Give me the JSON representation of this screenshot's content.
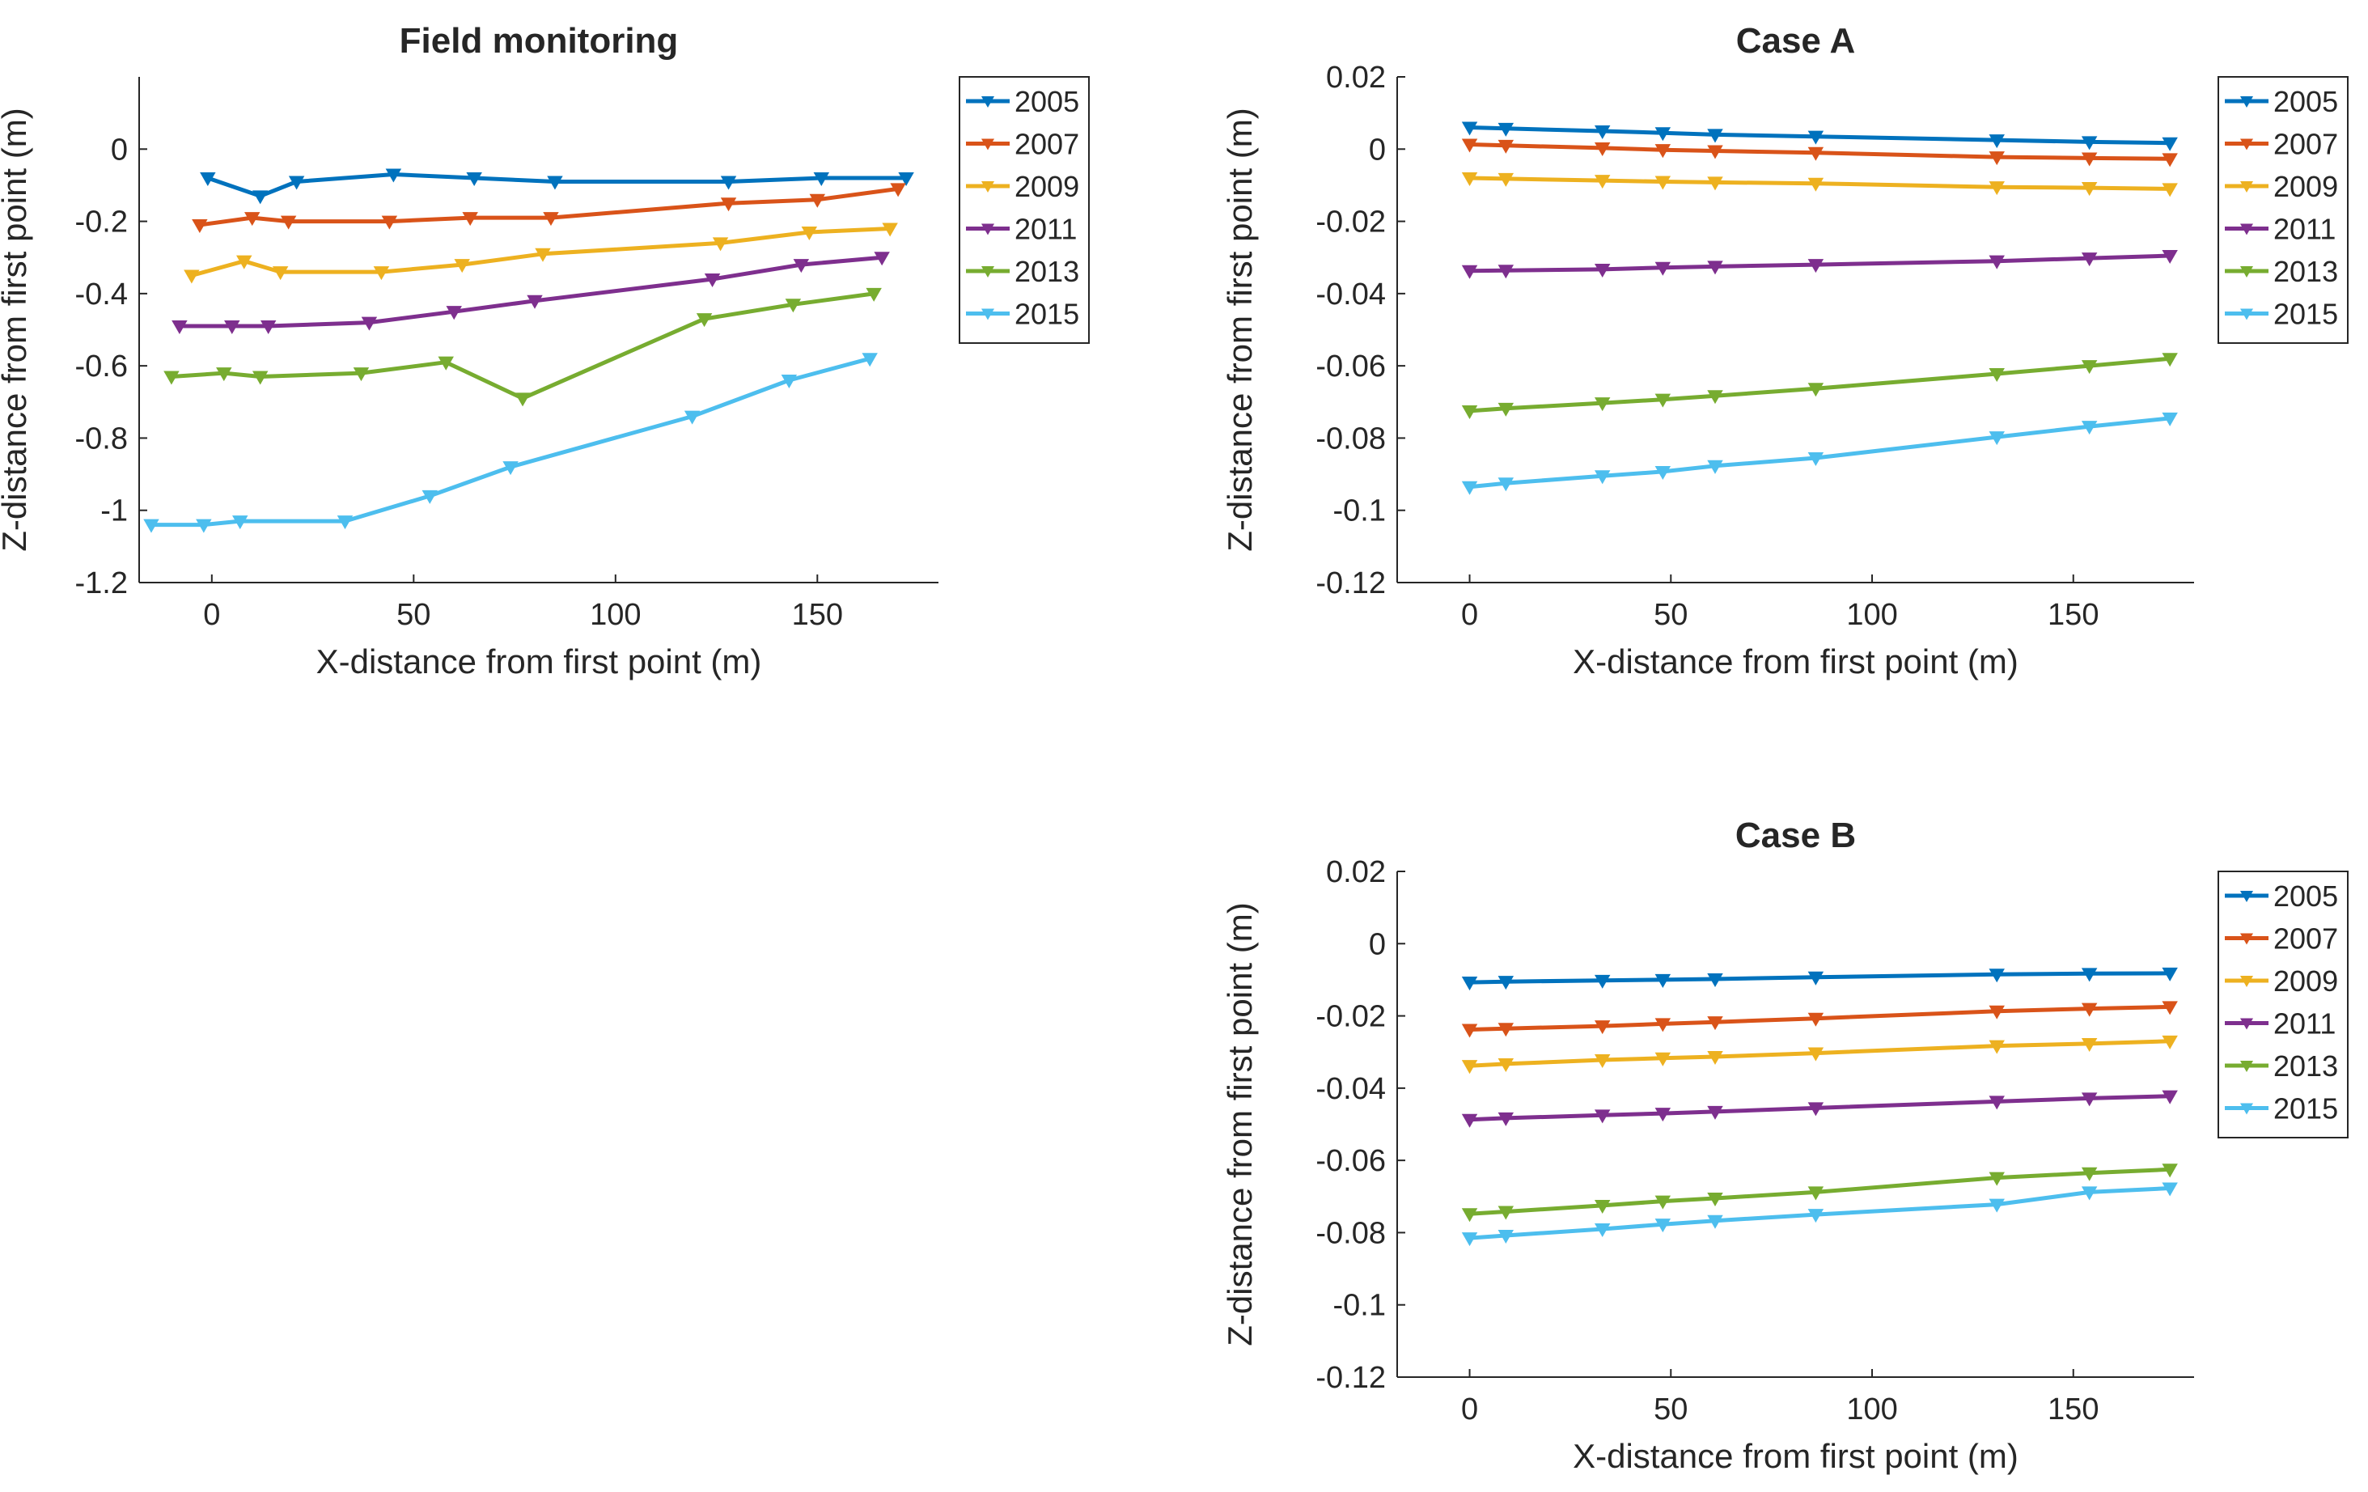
{
  "colors": {
    "2005": "#0072BD",
    "2007": "#D95319",
    "2009": "#EDB120",
    "2011": "#7E2F8E",
    "2013": "#77AC30",
    "2015": "#4DBEEE"
  },
  "chart_data": [
    {
      "type": "line",
      "title": "Field monitoring",
      "xlabel": "X-distance from first point (m)",
      "ylabel": "Z-distance from first point (m)",
      "xlim": [
        -18,
        180
      ],
      "ylim": [
        -1.2,
        0.2
      ],
      "xticks": [
        0,
        50,
        100,
        150
      ],
      "xtick_labels": [
        "0",
        "50",
        "100",
        "150"
      ],
      "yticks": [
        0,
        -0.2,
        -0.4,
        -0.6,
        -0.8,
        -1,
        -1.2
      ],
      "ytick_labels": [
        "0",
        "-0.2",
        "-0.4",
        "-0.6",
        "-0.8",
        "-1",
        "-1.2"
      ],
      "legend": [
        "2005",
        "2007",
        "2009",
        "2011",
        "2013",
        "2015"
      ],
      "legend_position": "outside-right-top",
      "series": [
        {
          "name": "2005",
          "x": [
            -1,
            12,
            21,
            45,
            65,
            85,
            128,
            151,
            172
          ],
          "y": [
            -0.08,
            -0.13,
            -0.09,
            -0.07,
            -0.08,
            -0.09,
            -0.09,
            -0.08,
            -0.08
          ]
        },
        {
          "name": "2007",
          "x": [
            -3,
            10,
            19,
            44,
            64,
            84,
            128,
            150,
            170
          ],
          "y": [
            -0.21,
            -0.19,
            -0.2,
            -0.2,
            -0.19,
            -0.19,
            -0.15,
            -0.14,
            -0.11
          ]
        },
        {
          "name": "2009",
          "x": [
            -5,
            8,
            17,
            42,
            62,
            82,
            126,
            148,
            168
          ],
          "y": [
            -0.35,
            -0.31,
            -0.34,
            -0.34,
            -0.32,
            -0.29,
            -0.26,
            -0.23,
            -0.22
          ]
        },
        {
          "name": "2011",
          "x": [
            -8,
            5,
            14,
            39,
            60,
            80,
            124,
            146,
            166
          ],
          "y": [
            -0.49,
            -0.49,
            -0.49,
            -0.48,
            -0.45,
            -0.42,
            -0.36,
            -0.32,
            -0.3
          ]
        },
        {
          "name": "2013",
          "x": [
            -10,
            3,
            12,
            37,
            58,
            77,
            122,
            144,
            164
          ],
          "y": [
            -0.63,
            -0.62,
            -0.63,
            -0.62,
            -0.59,
            -0.69,
            -0.47,
            -0.43,
            -0.4
          ]
        },
        {
          "name": "2015",
          "x": [
            -15,
            -2,
            7,
            33,
            54,
            74,
            119,
            143,
            163
          ],
          "y": [
            -1.04,
            -1.04,
            -1.03,
            -1.03,
            -0.96,
            -0.88,
            -0.74,
            -0.64,
            -0.58
          ]
        }
      ]
    },
    {
      "type": "line",
      "title": "Case A",
      "xlabel": "X-distance from first point (m)",
      "ylabel": "Z-distance from first point (m)",
      "xlim": [
        -18,
        180
      ],
      "ylim": [
        -0.12,
        0.02
      ],
      "xticks": [
        0,
        50,
        100,
        150
      ],
      "xtick_labels": [
        "0",
        "50",
        "100",
        "150"
      ],
      "yticks": [
        0.02,
        0,
        -0.02,
        -0.04,
        -0.06,
        -0.08,
        -0.1,
        -0.12
      ],
      "ytick_labels": [
        "0.02",
        "0",
        "-0.02",
        "-0.04",
        "-0.06",
        "-0.08",
        "-0.1",
        "-0.12"
      ],
      "legend": [
        "2005",
        "2007",
        "2009",
        "2011",
        "2013",
        "2015"
      ],
      "legend_position": "outside-right-top",
      "series": [
        {
          "name": "2005",
          "x": [
            0,
            9,
            33,
            48,
            61,
            86,
            131,
            154,
            174
          ],
          "y": [
            0.006,
            0.0057,
            0.005,
            0.0045,
            0.004,
            0.0035,
            0.0025,
            0.002,
            0.0017
          ]
        },
        {
          "name": "2007",
          "x": [
            0,
            9,
            33,
            48,
            61,
            86,
            131,
            154,
            174
          ],
          "y": [
            0.0013,
            0.001,
            0.0003,
            -0.0002,
            -0.0005,
            -0.001,
            -0.0022,
            -0.0025,
            -0.0027
          ]
        },
        {
          "name": "2009",
          "x": [
            0,
            9,
            33,
            48,
            61,
            86,
            131,
            154,
            174
          ],
          "y": [
            -0.008,
            -0.0082,
            -0.0087,
            -0.009,
            -0.0092,
            -0.0095,
            -0.0105,
            -0.0107,
            -0.011
          ]
        },
        {
          "name": "2011",
          "x": [
            0,
            9,
            33,
            48,
            61,
            86,
            131,
            154,
            174
          ],
          "y": [
            -0.0337,
            -0.0336,
            -0.0333,
            -0.0328,
            -0.0325,
            -0.032,
            -0.031,
            -0.0302,
            -0.0295
          ]
        },
        {
          "name": "2013",
          "x": [
            0,
            9,
            33,
            48,
            61,
            86,
            131,
            154,
            174
          ],
          "y": [
            -0.0725,
            -0.0718,
            -0.0703,
            -0.0693,
            -0.0683,
            -0.0663,
            -0.0622,
            -0.06,
            -0.058
          ]
        },
        {
          "name": "2015",
          "x": [
            0,
            9,
            33,
            48,
            61,
            86,
            131,
            154,
            174
          ],
          "y": [
            -0.0935,
            -0.0925,
            -0.0905,
            -0.0893,
            -0.0877,
            -0.0855,
            -0.0797,
            -0.0768,
            -0.0745
          ]
        }
      ]
    },
    {
      "type": "line",
      "title": "Case B",
      "xlabel": "X-distance from first point (m)",
      "ylabel": "Z-distance from first point (m)",
      "xlim": [
        -18,
        180
      ],
      "ylim": [
        -0.12,
        0.02
      ],
      "xticks": [
        0,
        50,
        100,
        150
      ],
      "xtick_labels": [
        "0",
        "50",
        "100",
        "150"
      ],
      "yticks": [
        0.02,
        0,
        -0.02,
        -0.04,
        -0.06,
        -0.08,
        -0.1,
        -0.12
      ],
      "ytick_labels": [
        "0.02",
        "0",
        "-0.02",
        "-0.04",
        "-0.06",
        "-0.08",
        "-0.1",
        "-0.12"
      ],
      "legend": [
        "2005",
        "2007",
        "2009",
        "2011",
        "2013",
        "2015"
      ],
      "legend_position": "outside-right-top",
      "series": [
        {
          "name": "2005",
          "x": [
            0,
            9,
            33,
            48,
            61,
            86,
            131,
            154,
            174
          ],
          "y": [
            -0.0107,
            -0.0105,
            -0.0102,
            -0.01,
            -0.0098,
            -0.0093,
            -0.0085,
            -0.0083,
            -0.0082
          ]
        },
        {
          "name": "2007",
          "x": [
            0,
            9,
            33,
            48,
            61,
            86,
            131,
            154,
            174
          ],
          "y": [
            -0.0238,
            -0.0235,
            -0.0228,
            -0.0222,
            -0.0217,
            -0.0207,
            -0.0187,
            -0.018,
            -0.0175
          ]
        },
        {
          "name": "2009",
          "x": [
            0,
            9,
            33,
            48,
            61,
            86,
            131,
            154,
            174
          ],
          "y": [
            -0.0338,
            -0.0333,
            -0.0322,
            -0.0317,
            -0.0313,
            -0.0303,
            -0.0283,
            -0.0277,
            -0.027
          ]
        },
        {
          "name": "2011",
          "x": [
            0,
            9,
            33,
            48,
            61,
            86,
            131,
            154,
            174
          ],
          "y": [
            -0.0487,
            -0.0483,
            -0.0475,
            -0.047,
            -0.0465,
            -0.0455,
            -0.0437,
            -0.0428,
            -0.0422
          ]
        },
        {
          "name": "2013",
          "x": [
            0,
            9,
            33,
            48,
            61,
            86,
            131,
            154,
            174
          ],
          "y": [
            -0.0748,
            -0.0742,
            -0.0725,
            -0.0713,
            -0.0705,
            -0.0688,
            -0.0648,
            -0.0635,
            -0.0625
          ]
        },
        {
          "name": "2015",
          "x": [
            0,
            9,
            33,
            48,
            61,
            86,
            131,
            154,
            174
          ],
          "y": [
            -0.0815,
            -0.0808,
            -0.079,
            -0.0777,
            -0.0767,
            -0.075,
            -0.0722,
            -0.0688,
            -0.0677
          ]
        }
      ]
    }
  ]
}
